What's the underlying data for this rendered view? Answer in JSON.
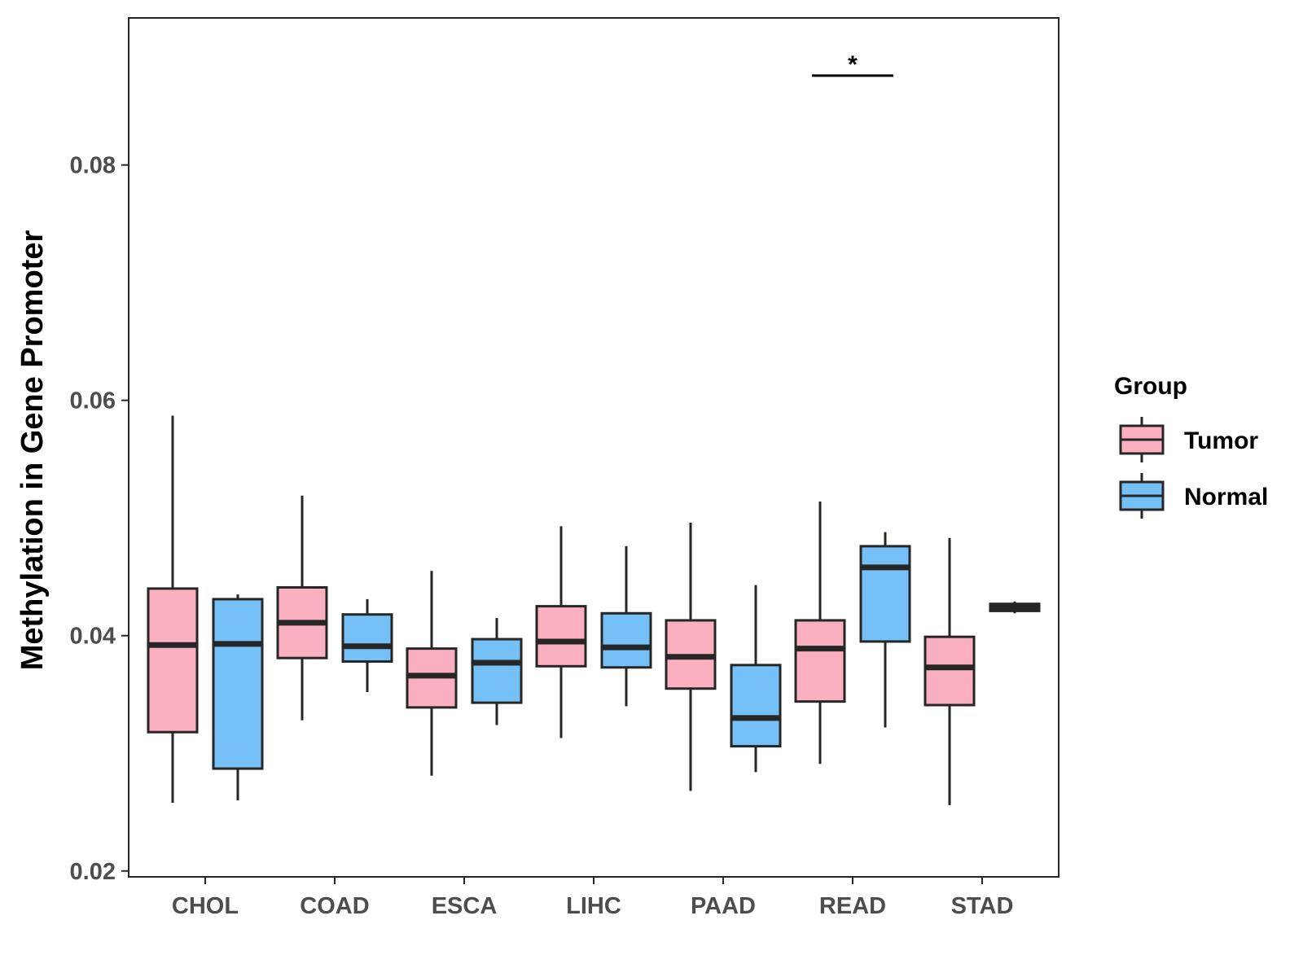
{
  "chart_data": {
    "type": "boxplot",
    "title": "",
    "xlabel": "",
    "ylabel": "Methylation in Gene Promoter",
    "ylim": [
      0.0195,
      0.0925
    ],
    "yticks": [
      0.02,
      0.04,
      0.06,
      0.08
    ],
    "ytick_labels": [
      "0.02",
      "0.04",
      "0.06",
      "0.08"
    ],
    "categories": [
      "CHOL",
      "COAD",
      "ESCA",
      "LIHC",
      "PAAD",
      "READ",
      "STAD"
    ],
    "legend": {
      "title": "Group",
      "position": "right"
    },
    "series": [
      {
        "name": "Tumor",
        "color": "#fbb0c1",
        "boxes": [
          {
            "category": "CHOL",
            "min": 0.0258,
            "q1": 0.0318,
            "median": 0.0392,
            "q3": 0.044,
            "max": 0.0587
          },
          {
            "category": "COAD",
            "min": 0.0328,
            "q1": 0.0381,
            "median": 0.0411,
            "q3": 0.0441,
            "max": 0.0519
          },
          {
            "category": "ESCA",
            "min": 0.0281,
            "q1": 0.0339,
            "median": 0.0366,
            "q3": 0.0389,
            "max": 0.0455
          },
          {
            "category": "LIHC",
            "min": 0.0313,
            "q1": 0.0374,
            "median": 0.0395,
            "q3": 0.0425,
            "max": 0.0493
          },
          {
            "category": "PAAD",
            "min": 0.0268,
            "q1": 0.0355,
            "median": 0.0382,
            "q3": 0.0413,
            "max": 0.0496
          },
          {
            "category": "READ",
            "min": 0.0291,
            "q1": 0.0344,
            "median": 0.0389,
            "q3": 0.0413,
            "max": 0.0514
          },
          {
            "category": "STAD",
            "min": 0.0256,
            "q1": 0.0341,
            "median": 0.0373,
            "q3": 0.0399,
            "max": 0.0483
          }
        ]
      },
      {
        "name": "Normal",
        "color": "#74c0f7",
        "boxes": [
          {
            "category": "CHOL",
            "min": 0.026,
            "q1": 0.0287,
            "median": 0.0393,
            "q3": 0.0431,
            "max": 0.0435
          },
          {
            "category": "COAD",
            "min": 0.0352,
            "q1": 0.0378,
            "median": 0.0391,
            "q3": 0.0418,
            "max": 0.0431
          },
          {
            "category": "ESCA",
            "min": 0.0324,
            "q1": 0.0343,
            "median": 0.0377,
            "q3": 0.0397,
            "max": 0.0415
          },
          {
            "category": "LIHC",
            "min": 0.034,
            "q1": 0.0373,
            "median": 0.039,
            "q3": 0.0419,
            "max": 0.0476
          },
          {
            "category": "PAAD",
            "min": 0.0284,
            "q1": 0.0306,
            "median": 0.033,
            "q3": 0.0375,
            "max": 0.0443
          },
          {
            "category": "READ",
            "min": 0.0322,
            "q1": 0.0395,
            "median": 0.0458,
            "q3": 0.0476,
            "max": 0.0488
          },
          {
            "category": "STAD",
            "min": 0.0419,
            "q1": 0.0421,
            "median": 0.0424,
            "q3": 0.0427,
            "max": 0.0429
          }
        ]
      }
    ],
    "annotations": [
      {
        "category": "READ",
        "label": "*",
        "y": 0.0876
      }
    ]
  },
  "colors": {
    "stroke": "#262626",
    "axis_text": "#4d4d4d"
  }
}
